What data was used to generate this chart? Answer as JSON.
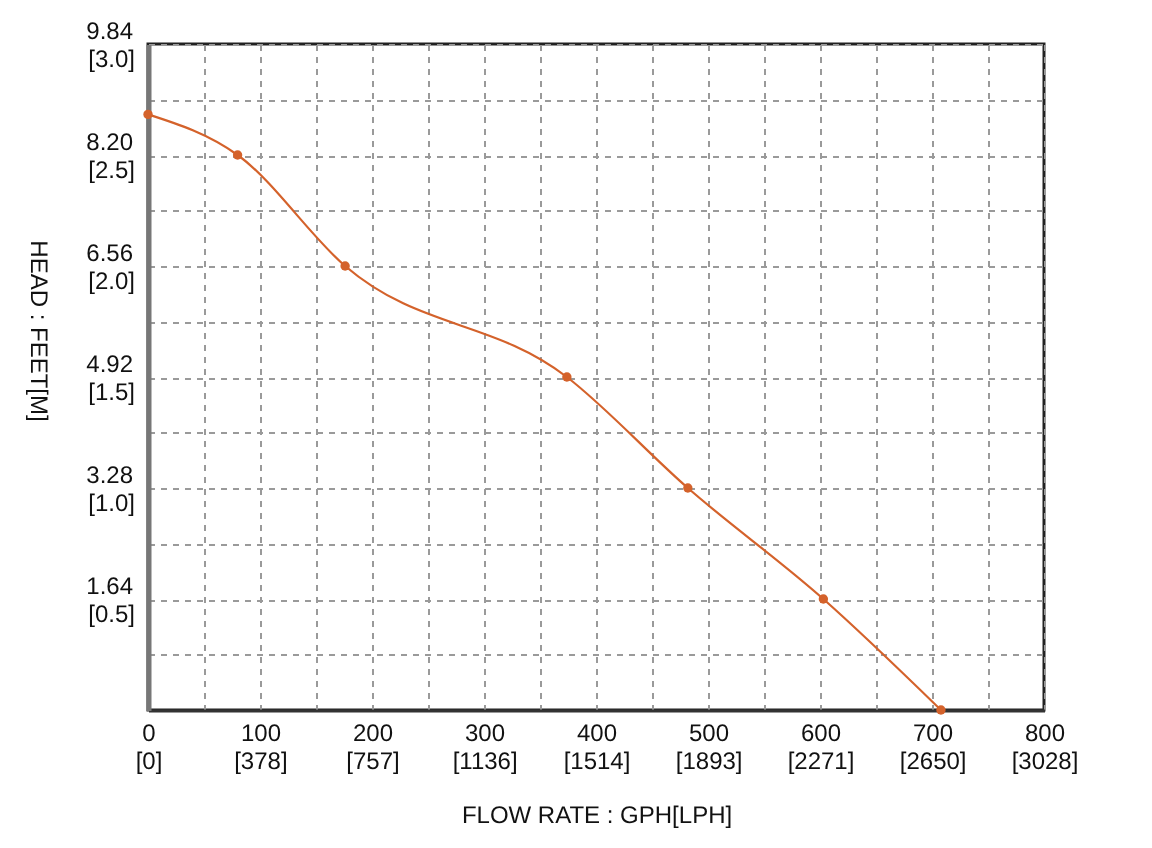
{
  "chart_data": {
    "type": "line",
    "xlabel": "FLOW RATE : GPH[LPH]",
    "ylabel": "HEAD : FEET[M]",
    "x": [
      0,
      80,
      176,
      374,
      482,
      603,
      708
    ],
    "series": [
      {
        "color": "#d4622b",
        "values": [
          8.8,
          8.2,
          6.56,
          4.92,
          3.28,
          1.64,
          0
        ]
      }
    ],
    "xlim": [
      0,
      800
    ],
    "ylim": [
      0,
      9.84
    ],
    "xticks": [
      0,
      {
        "value": 50,
        "label": null
      },
      100,
      {
        "value": 150,
        "label": null
      },
      200,
      {
        "value": 250,
        "label": null
      },
      300,
      {
        "value": 350,
        "label": null
      },
      400,
      {
        "value": 450,
        "label": null
      },
      500,
      {
        "value": 550,
        "label": null
      },
      600,
      {
        "value": 650,
        "label": null
      },
      700,
      {
        "value": 750,
        "label": null
      },
      800
    ],
    "yticks": [
      {
        "value": 0.82,
        "label": null
      },
      1.64,
      {
        "value": 2.46,
        "label": null
      },
      3.28,
      {
        "value": 4.1,
        "label": null
      },
      4.92,
      {
        "value": 5.74,
        "label": null
      },
      6.56,
      {
        "value": 7.38,
        "label": null
      },
      {
        "value": 8.2,
        "label": "8.20"
      },
      {
        "value": 9.02,
        "label": null
      },
      9.84
    ],
    "x2lim": [
      0,
      3028
    ],
    "x2ticks": [
      {
        "value": 0,
        "label": "[0]"
      },
      {
        "value": 378,
        "label": "[378]"
      },
      {
        "value": 757,
        "label": "[757]"
      },
      {
        "value": 1136,
        "label": "[1136]"
      },
      {
        "value": 1514,
        "label": "[1514]"
      },
      {
        "value": 1893,
        "label": "[1893]"
      },
      {
        "value": 2271,
        "label": "[2271]"
      },
      {
        "value": 2650,
        "label": "[2650]"
      },
      {
        "value": 3028,
        "label": "[3028]"
      }
    ],
    "y2lim": [
      0,
      3.0
    ],
    "y2ticks": [
      {
        "value": 0.5,
        "label": "[0.5]"
      },
      {
        "value": 1.0,
        "label": "[1.0]"
      },
      {
        "value": 1.5,
        "label": "[1.5]"
      },
      {
        "value": 2.0,
        "label": "[2.0]"
      },
      {
        "value": 2.5,
        "label": "[2.5]"
      },
      {
        "value": 3.0,
        "label": "[3.0]"
      }
    ],
    "grid": true,
    "marker": "circle",
    "line_style": "solid"
  }
}
